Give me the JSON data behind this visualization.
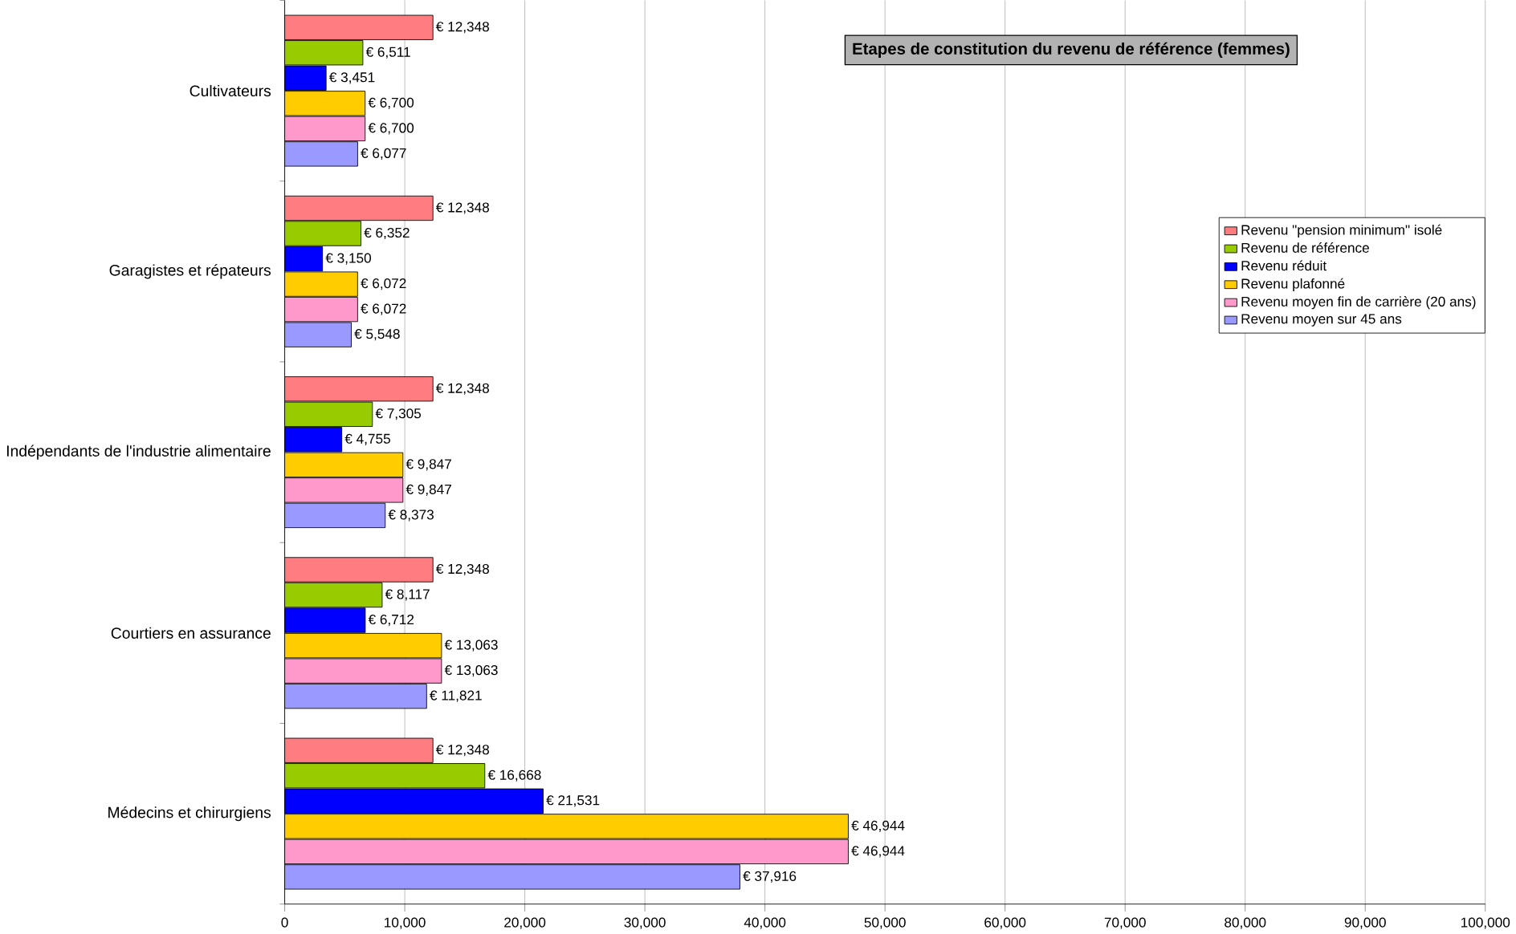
{
  "chart_data": {
    "type": "bar",
    "orientation": "horizontal",
    "title": "Etapes de constitution du revenu de référence (femmes)",
    "categories": [
      "Cultivateurs",
      "Garagistes et répateurs",
      "Indépendants de l'industrie alimentaire",
      "Courtiers en assurance",
      "Médecins et chirurgiens"
    ],
    "series": [
      {
        "name": "Revenu \"pension minimum\" isolé",
        "color": "#ff7c80",
        "values": [
          12348,
          12348,
          12348,
          12348,
          12348
        ],
        "value_labels": [
          "€ 12,348",
          "€ 12,348",
          "€ 12,348",
          "€ 12,348",
          "€ 12,348"
        ]
      },
      {
        "name": "Revenu de référence",
        "color": "#99cc00",
        "values": [
          6511,
          6352,
          7305,
          8117,
          16668
        ],
        "value_labels": [
          "€ 6,511",
          "€ 6,352",
          "€ 7,305",
          "€ 8,117",
          "€ 16,668"
        ]
      },
      {
        "name": "Revenu réduit",
        "color": "#0000ff",
        "values": [
          3451,
          3150,
          4755,
          6712,
          21531
        ],
        "value_labels": [
          "€ 3,451",
          "€ 3,150",
          "€ 4,755",
          "€ 6,712",
          "€ 21,531"
        ]
      },
      {
        "name": "Revenu plafonné",
        "color": "#ffcc00",
        "values": [
          6700,
          6072,
          9847,
          13063,
          46944
        ],
        "value_labels": [
          "€ 6,700",
          "€ 6,072",
          "€ 9,847",
          "€ 13,063",
          "€ 46,944"
        ]
      },
      {
        "name": "Revenu moyen fin de carrière (20 ans)",
        "color": "#ff99cc",
        "values": [
          6700,
          6072,
          9847,
          13063,
          46944
        ],
        "value_labels": [
          "€ 6,700",
          "€ 6,072",
          "€ 9,847",
          "€ 13,063",
          "€ 46,944"
        ]
      },
      {
        "name": "Revenu moyen sur 45 ans",
        "color": "#9999ff",
        "values": [
          6077,
          5548,
          8373,
          11821,
          37916
        ],
        "value_labels": [
          "€ 6,077",
          "€ 5,548",
          "€ 8,373",
          "€ 11,821",
          "€ 37,916"
        ]
      }
    ],
    "xlim": [
      0,
      100000
    ],
    "xticks": [
      {
        "value": 0,
        "label": "0"
      },
      {
        "value": 10000,
        "label": "10,000"
      },
      {
        "value": 20000,
        "label": "20,000"
      },
      {
        "value": 30000,
        "label": "30,000"
      },
      {
        "value": 40000,
        "label": "40,000"
      },
      {
        "value": 50000,
        "label": "50,000"
      },
      {
        "value": 60000,
        "label": "60,000"
      },
      {
        "value": 70000,
        "label": "70,000"
      },
      {
        "value": 80000,
        "label": "80,000"
      },
      {
        "value": 90000,
        "label": "90,000"
      },
      {
        "value": 100000,
        "label": "100,000"
      }
    ],
    "grid": "x",
    "legend": "right"
  }
}
